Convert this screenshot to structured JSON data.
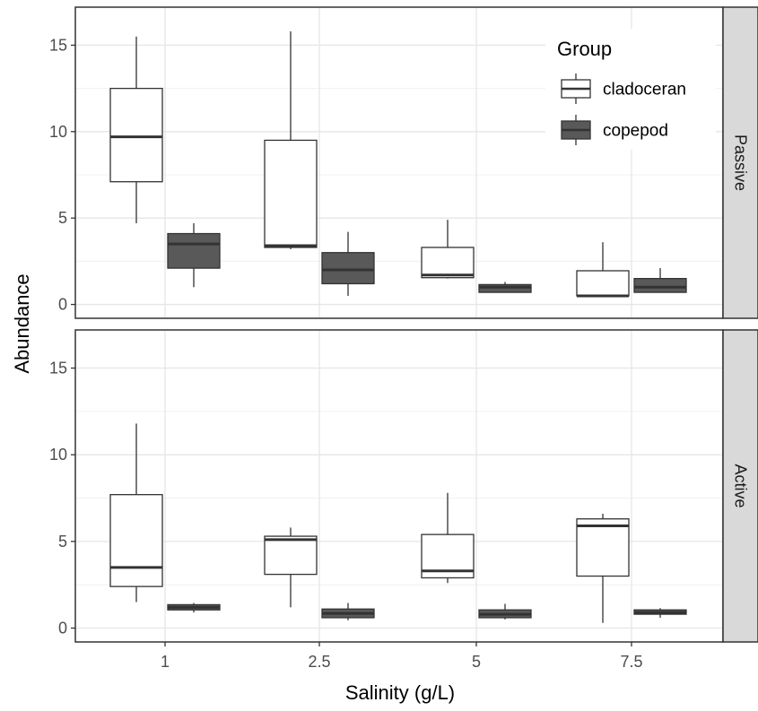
{
  "chart_data": {
    "type": "boxplot",
    "xlabel": "Salinity (g/L)",
    "ylabel": "Abundance",
    "categories": [
      "1",
      "2.5",
      "5",
      "7.5"
    ],
    "ylim": [
      -0.8,
      17.2
    ],
    "yticks": [
      0,
      5,
      10,
      15
    ],
    "grid": true,
    "legend": {
      "title": "Group",
      "position": "top-right",
      "items": [
        {
          "name": "cladoceran",
          "fill": "#ffffff"
        },
        {
          "name": "copepod",
          "fill": "#595959"
        }
      ]
    },
    "panels": [
      {
        "label": "Passive",
        "series": [
          {
            "name": "cladoceran",
            "boxes": [
              {
                "min": 4.7,
                "q1": 7.1,
                "median": 9.7,
                "q3": 12.5,
                "max": 15.5
              },
              {
                "min": 3.2,
                "q1": 3.3,
                "median": 3.4,
                "q3": 9.5,
                "max": 15.8
              },
              {
                "min": 1.5,
                "q1": 1.55,
                "median": 1.7,
                "q3": 3.3,
                "max": 4.9
              },
              {
                "min": 0.5,
                "q1": 0.5,
                "median": 0.5,
                "q3": 1.95,
                "max": 3.6
              }
            ]
          },
          {
            "name": "copepod",
            "boxes": [
              {
                "min": 1.0,
                "q1": 2.1,
                "median": 3.5,
                "q3": 4.1,
                "max": 4.7
              },
              {
                "min": 0.5,
                "q1": 1.2,
                "median": 2.0,
                "q3": 3.0,
                "max": 4.2
              },
              {
                "min": 0.7,
                "q1": 0.7,
                "median": 1.0,
                "q3": 1.15,
                "max": 1.3
              },
              {
                "min": 0.7,
                "q1": 0.7,
                "median": 1.0,
                "q3": 1.5,
                "max": 2.1
              }
            ]
          }
        ]
      },
      {
        "label": "Active",
        "series": [
          {
            "name": "cladoceran",
            "boxes": [
              {
                "min": 1.5,
                "q1": 2.4,
                "median": 3.5,
                "q3": 7.7,
                "max": 11.8
              },
              {
                "min": 1.2,
                "q1": 3.1,
                "median": 5.1,
                "q3": 5.3,
                "max": 5.8
              },
              {
                "min": 2.6,
                "q1": 2.9,
                "median": 3.3,
                "q3": 5.4,
                "max": 7.8
              },
              {
                "min": 0.3,
                "q1": 3.0,
                "median": 5.9,
                "q3": 6.3,
                "max": 6.6
              }
            ]
          },
          {
            "name": "copepod",
            "boxes": [
              {
                "min": 0.9,
                "q1": 1.05,
                "median": 1.2,
                "q3": 1.35,
                "max": 1.45
              },
              {
                "min": 0.45,
                "q1": 0.6,
                "median": 0.85,
                "q3": 1.1,
                "max": 1.45
              },
              {
                "min": 0.5,
                "q1": 0.6,
                "median": 0.8,
                "q3": 1.05,
                "max": 1.4
              },
              {
                "min": 0.6,
                "q1": 0.8,
                "median": 0.9,
                "q3": 1.05,
                "max": 1.15
              }
            ]
          }
        ]
      }
    ]
  }
}
